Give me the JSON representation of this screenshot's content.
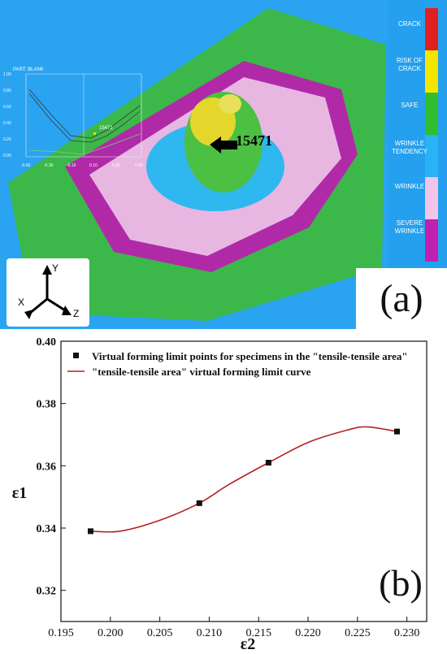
{
  "panel_a": {
    "label": "(a)",
    "legend": [
      {
        "label": "CRACK",
        "color": "#e02020"
      },
      {
        "label": "RISK OF CRACK",
        "color": "#f2e600"
      },
      {
        "label": "SAFE",
        "color": "#2fbf2f"
      },
      {
        "label": "WRINKLE TENDENCY",
        "color": "#27b3f5"
      },
      {
        "label": "WRINKLE",
        "color": "#f2c4e8"
      },
      {
        "label": "SEVERE WRINKLE",
        "color": "#c020b0"
      }
    ],
    "callout_label": "15471",
    "inset": {
      "title": "PART: BLANK",
      "point_label": "15471",
      "yticks": [
        "1.00",
        "0.80",
        "0.60",
        "0.40",
        "0.20",
        "0.00"
      ],
      "xticks": [
        "-0.50",
        "-0.30",
        "-0.10",
        "0.10",
        "0.30",
        "0.50"
      ]
    },
    "axes_icon": {
      "y": "Y",
      "x": "X",
      "z": "Z"
    }
  },
  "chart_data": {
    "type": "scatter",
    "panel_label": "(b)",
    "xlabel": "ε2",
    "ylabel": "ε1",
    "xlim": [
      0.195,
      0.232
    ],
    "ylim": [
      0.31,
      0.4
    ],
    "xticks": [
      "0.195",
      "0.200",
      "0.205",
      "0.210",
      "0.215",
      "0.220",
      "0.225",
      "0.230"
    ],
    "yticks": [
      "0.32",
      "0.34",
      "0.36",
      "0.38",
      "0.40"
    ],
    "series": [
      {
        "name": "Virtual forming limit points for specimens in the \"tensile-tensile area\"",
        "kind": "points",
        "color": "#111111",
        "x": [
          0.198,
          0.209,
          0.216,
          0.229
        ],
        "y": [
          0.339,
          0.348,
          0.361,
          0.371
        ]
      },
      {
        "name": "\"tensile-tensile area\" virtual forming limit curve",
        "kind": "curve",
        "color": "#b22222",
        "x": [
          0.198,
          0.201,
          0.205,
          0.209,
          0.212,
          0.216,
          0.22,
          0.224,
          0.226,
          0.229
        ],
        "y": [
          0.339,
          0.339,
          0.3425,
          0.348,
          0.354,
          0.361,
          0.3675,
          0.3715,
          0.3725,
          0.371
        ]
      }
    ]
  }
}
